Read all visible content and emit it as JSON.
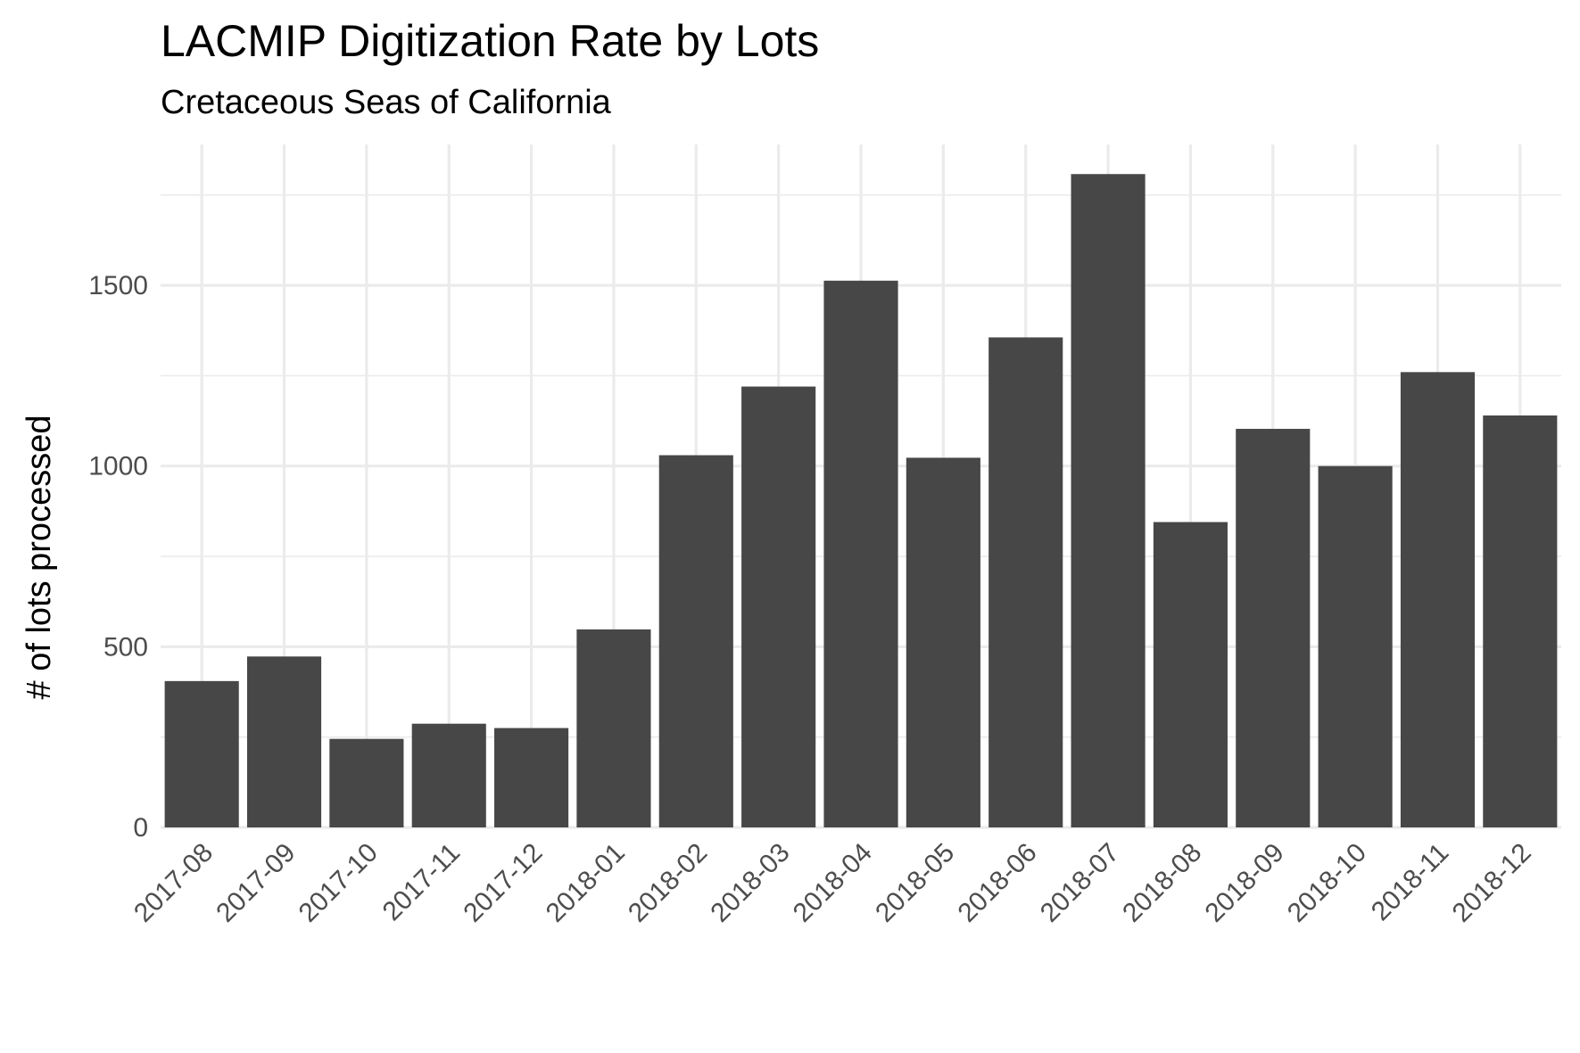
{
  "chart_data": {
    "type": "bar",
    "title": "LACMIP Digitization Rate by Lots",
    "subtitle": "Cretaceous Seas of California",
    "xlabel": "",
    "ylabel": "# of lots processed",
    "categories": [
      "2017-08",
      "2017-09",
      "2017-10",
      "2017-11",
      "2017-12",
      "2018-01",
      "2018-02",
      "2018-03",
      "2018-04",
      "2018-05",
      "2018-06",
      "2018-07",
      "2018-08",
      "2018-09",
      "2018-10",
      "2018-11",
      "2018-12"
    ],
    "values": [
      405,
      473,
      245,
      287,
      275,
      548,
      1030,
      1220,
      1513,
      1023,
      1356,
      1808,
      845,
      1103,
      1000,
      1260,
      1140
    ],
    "yticks": [
      0,
      500,
      1000,
      1500
    ],
    "ylim": [
      0,
      1890
    ],
    "grid": true,
    "bar_color": "#474747",
    "grid_color": "#ebebeb",
    "background": "#ffffff"
  }
}
